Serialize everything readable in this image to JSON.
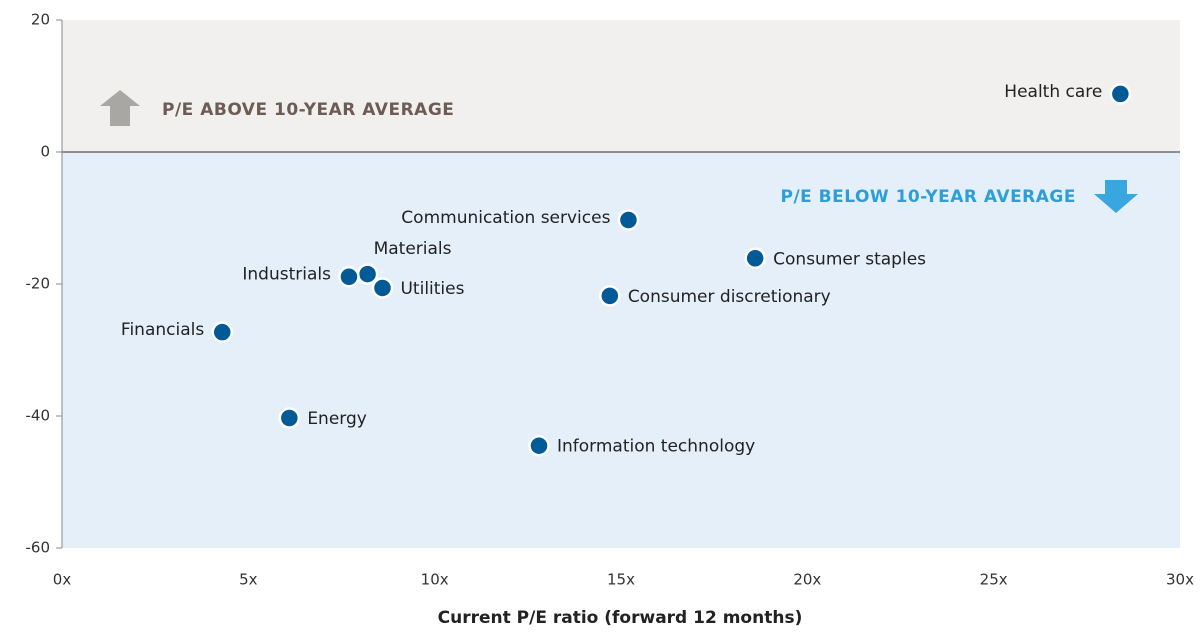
{
  "chart_data": {
    "type": "scatter",
    "x_label": "Current P/E ratio (forward 12 months)",
    "annotations": [
      "P/E ABOVE 10-YEAR AVERAGE",
      "P/E BELOW 10-YEAR AVERAGE"
    ],
    "color": "#005a96",
    "labels": [
      "Health care",
      "Communication services",
      "Consumer staples",
      "Materials",
      "Industrials",
      "Utilities",
      "Consumer discretionary",
      "Financials",
      "Energy",
      "Information technology"
    ],
    "x": [
      28.4,
      15.2,
      18.6,
      8.2,
      7.7,
      8.6,
      14.7,
      4.3,
      6.1,
      12.8
    ],
    "values": [
      8.8,
      -10.3,
      -16.1,
      -18.5,
      -18.9,
      -20.6,
      -21.8,
      -27.3,
      -40.3,
      -44.5
    ],
    "xlim": [
      0,
      30
    ],
    "xticks": [
      {
        "value": 0,
        "label": "0x"
      },
      {
        "value": 5,
        "label": "5x"
      },
      {
        "value": 10,
        "label": "10x"
      },
      {
        "value": 15,
        "label": "15x"
      },
      {
        "value": 20,
        "label": "20x"
      },
      {
        "value": 25,
        "label": "25x"
      },
      {
        "value": 30,
        "label": "30x"
      }
    ],
    "ylim": [
      -60,
      20
    ],
    "yticks": [
      20,
      0,
      -20,
      -40,
      -60
    ]
  }
}
